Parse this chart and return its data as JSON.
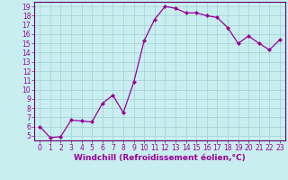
{
  "x": [
    0,
    1,
    2,
    3,
    4,
    5,
    6,
    7,
    8,
    9,
    10,
    11,
    12,
    13,
    14,
    15,
    16,
    17,
    18,
    19,
    20,
    21,
    22,
    23
  ],
  "y": [
    6.0,
    4.8,
    4.9,
    6.7,
    6.6,
    6.5,
    8.5,
    9.4,
    7.5,
    10.8,
    15.3,
    17.6,
    19.0,
    18.8,
    18.3,
    18.3,
    18.0,
    17.8,
    16.7,
    15.0,
    15.8,
    15.0,
    14.3,
    15.4
  ],
  "line_color": "#990099",
  "marker": "D",
  "marker_size": 2.0,
  "bg_color": "#c8eef0",
  "grid_color": "#aad4d8",
  "xlabel": "Windchill (Refroidissement éolien,°C)",
  "xlim": [
    -0.5,
    23.5
  ],
  "ylim": [
    4.5,
    19.5
  ],
  "yticks": [
    5,
    6,
    7,
    8,
    9,
    10,
    11,
    12,
    13,
    14,
    15,
    16,
    17,
    18,
    19
  ],
  "xticks": [
    0,
    1,
    2,
    3,
    4,
    5,
    6,
    7,
    8,
    9,
    10,
    11,
    12,
    13,
    14,
    15,
    16,
    17,
    18,
    19,
    20,
    21,
    22,
    23
  ],
  "tick_fontsize": 5.5,
  "xlabel_fontsize": 6.5,
  "spine_color": "#660066",
  "line_width": 0.9
}
